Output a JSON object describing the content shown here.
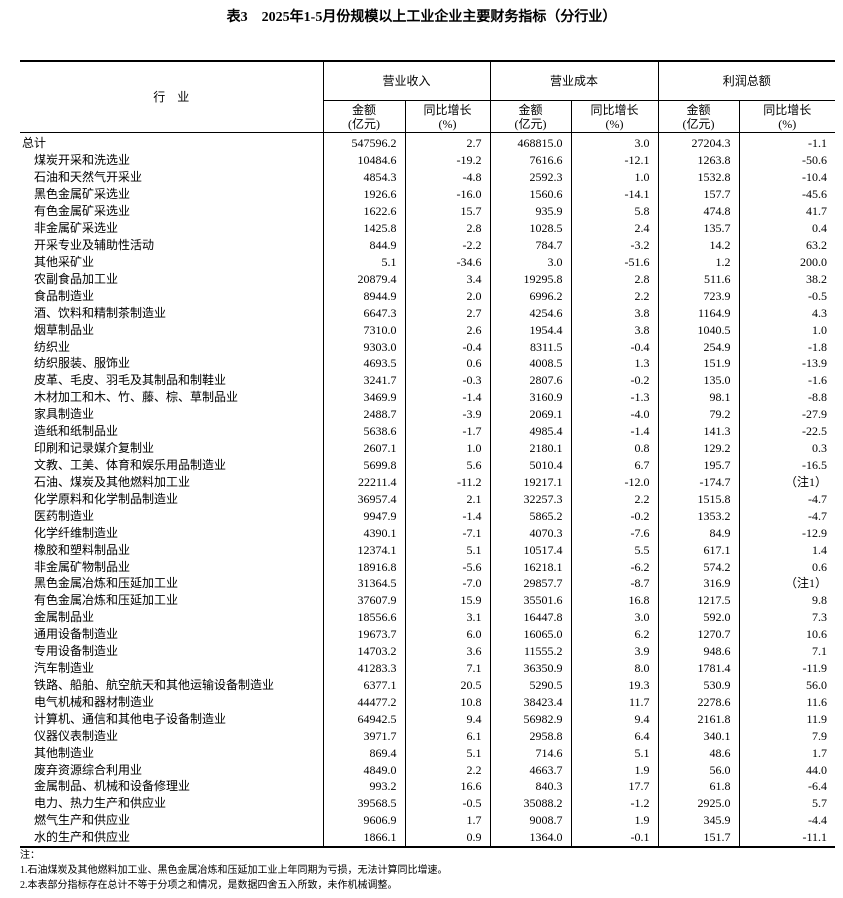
{
  "title": "表3　2025年1-5月份规模以上工业企业主要财务指标（分行业）",
  "header": {
    "industry": "行　业",
    "groups": [
      "营业收入",
      "营业成本",
      "利润总额"
    ],
    "amount": "金额",
    "amount_unit": "(亿元)",
    "growth": "同比增长",
    "growth_unit": "(%)"
  },
  "rows": [
    [
      "总计",
      "547596.2",
      "2.7",
      "468815.0",
      "3.0",
      "27204.3",
      "-1.1"
    ],
    [
      "煤炭开采和洗选业",
      "10484.6",
      "-19.2",
      "7616.6",
      "-12.1",
      "1263.8",
      "-50.6"
    ],
    [
      "石油和天然气开采业",
      "4854.3",
      "-4.8",
      "2592.3",
      "1.0",
      "1532.8",
      "-10.4"
    ],
    [
      "黑色金属矿采选业",
      "1926.6",
      "-16.0",
      "1560.6",
      "-14.1",
      "157.7",
      "-45.6"
    ],
    [
      "有色金属矿采选业",
      "1622.6",
      "15.7",
      "935.9",
      "5.8",
      "474.8",
      "41.7"
    ],
    [
      "非金属矿采选业",
      "1425.8",
      "2.8",
      "1028.5",
      "2.4",
      "135.7",
      "0.4"
    ],
    [
      "开采专业及辅助性活动",
      "844.9",
      "-2.2",
      "784.7",
      "-3.2",
      "14.2",
      "63.2"
    ],
    [
      "其他采矿业",
      "5.1",
      "-34.6",
      "3.0",
      "-51.6",
      "1.2",
      "200.0"
    ],
    [
      "农副食品加工业",
      "20879.4",
      "3.4",
      "19295.8",
      "2.8",
      "511.6",
      "38.2"
    ],
    [
      "食品制造业",
      "8944.9",
      "2.0",
      "6996.2",
      "2.2",
      "723.9",
      "-0.5"
    ],
    [
      "酒、饮料和精制茶制造业",
      "6647.3",
      "2.7",
      "4254.6",
      "3.8",
      "1164.9",
      "4.3"
    ],
    [
      "烟草制品业",
      "7310.0",
      "2.6",
      "1954.4",
      "3.8",
      "1040.5",
      "1.0"
    ],
    [
      "纺织业",
      "9303.0",
      "-0.4",
      "8311.5",
      "-0.4",
      "254.9",
      "-1.8"
    ],
    [
      "纺织服装、服饰业",
      "4693.5",
      "0.6",
      "4008.5",
      "1.3",
      "151.9",
      "-13.9"
    ],
    [
      "皮革、毛皮、羽毛及其制品和制鞋业",
      "3241.7",
      "-0.3",
      "2807.6",
      "-0.2",
      "135.0",
      "-1.6"
    ],
    [
      "木材加工和木、竹、藤、棕、草制品业",
      "3469.9",
      "-1.4",
      "3160.9",
      "-1.3",
      "98.1",
      "-8.8"
    ],
    [
      "家具制造业",
      "2488.7",
      "-3.9",
      "2069.1",
      "-4.0",
      "79.2",
      "-27.9"
    ],
    [
      "造纸和纸制品业",
      "5638.6",
      "-1.7",
      "4985.4",
      "-1.4",
      "141.3",
      "-22.5"
    ],
    [
      "印刷和记录媒介复制业",
      "2607.1",
      "1.0",
      "2180.1",
      "0.8",
      "129.2",
      "0.3"
    ],
    [
      "文教、工美、体育和娱乐用品制造业",
      "5699.8",
      "5.6",
      "5010.4",
      "6.7",
      "195.7",
      "-16.5"
    ],
    [
      "石油、煤炭及其他燃料加工业",
      "22211.4",
      "-11.2",
      "19217.1",
      "-12.0",
      "-174.7",
      "（注1）"
    ],
    [
      "化学原料和化学制品制造业",
      "36957.4",
      "2.1",
      "32257.3",
      "2.2",
      "1515.8",
      "-4.7"
    ],
    [
      "医药制造业",
      "9947.9",
      "-1.4",
      "5865.2",
      "-0.2",
      "1353.2",
      "-4.7"
    ],
    [
      "化学纤维制造业",
      "4390.1",
      "-7.1",
      "4070.3",
      "-7.6",
      "84.9",
      "-12.9"
    ],
    [
      "橡胶和塑料制品业",
      "12374.1",
      "5.1",
      "10517.4",
      "5.5",
      "617.1",
      "1.4"
    ],
    [
      "非金属矿物制品业",
      "18916.8",
      "-5.6",
      "16218.1",
      "-6.2",
      "574.2",
      "0.6"
    ],
    [
      "黑色金属冶炼和压延加工业",
      "31364.5",
      "-7.0",
      "29857.7",
      "-8.7",
      "316.9",
      "（注1）"
    ],
    [
      "有色金属冶炼和压延加工业",
      "37607.9",
      "15.9",
      "35501.6",
      "16.8",
      "1217.5",
      "9.8"
    ],
    [
      "金属制品业",
      "18556.6",
      "3.1",
      "16447.8",
      "3.0",
      "592.0",
      "7.3"
    ],
    [
      "通用设备制造业",
      "19673.7",
      "6.0",
      "16065.0",
      "6.2",
      "1270.7",
      "10.6"
    ],
    [
      "专用设备制造业",
      "14703.2",
      "3.6",
      "11555.2",
      "3.9",
      "948.6",
      "7.1"
    ],
    [
      "汽车制造业",
      "41283.3",
      "7.1",
      "36350.9",
      "8.0",
      "1781.4",
      "-11.9"
    ],
    [
      "铁路、船舶、航空航天和其他运输设备制造业",
      "6377.1",
      "20.5",
      "5290.5",
      "19.3",
      "530.9",
      "56.0"
    ],
    [
      "电气机械和器材制造业",
      "44477.2",
      "10.8",
      "38423.4",
      "11.7",
      "2278.6",
      "11.6"
    ],
    [
      "计算机、通信和其他电子设备制造业",
      "64942.5",
      "9.4",
      "56982.9",
      "9.4",
      "2161.8",
      "11.9"
    ],
    [
      "仪器仪表制造业",
      "3971.7",
      "6.1",
      "2958.8",
      "6.4",
      "340.1",
      "7.9"
    ],
    [
      "其他制造业",
      "869.4",
      "5.1",
      "714.6",
      "5.1",
      "48.6",
      "1.7"
    ],
    [
      "废弃资源综合利用业",
      "4849.0",
      "2.2",
      "4663.7",
      "1.9",
      "56.0",
      "44.0"
    ],
    [
      "金属制品、机械和设备修理业",
      "993.2",
      "16.6",
      "840.3",
      "17.7",
      "61.8",
      "-6.4"
    ],
    [
      "电力、热力生产和供应业",
      "39568.5",
      "-0.5",
      "35088.2",
      "-1.2",
      "2925.0",
      "5.7"
    ],
    [
      "燃气生产和供应业",
      "9606.9",
      "1.7",
      "9008.7",
      "1.9",
      "345.9",
      "-4.4"
    ],
    [
      "水的生产和供应业",
      "1866.1",
      "0.9",
      "1364.0",
      "-0.1",
      "151.7",
      "-11.1"
    ]
  ],
  "notes": {
    "label": "注：",
    "items": [
      "1.石油煤炭及其他燃料加工业、黑色金属冶炼和压延加工业上年同期为亏损，无法计算同比增速。",
      "2.本表部分指标存在总计不等于分项之和情况，是数据四舍五入所致，未作机械调整。"
    ]
  }
}
